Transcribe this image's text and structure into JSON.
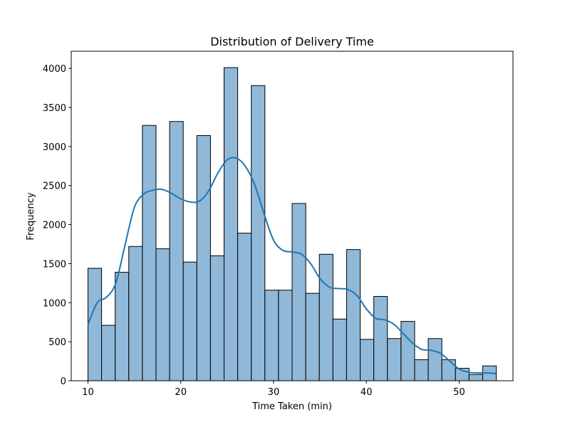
{
  "chart_data": {
    "type": "bar",
    "title": "Distribution of Delivery Time",
    "xlabel": "Time Taken (min)",
    "ylabel": "Frequency",
    "xlim": [
      8.2,
      55.8
    ],
    "ylim": [
      0,
      4220
    ],
    "xticks": [
      10,
      20,
      30,
      40,
      50
    ],
    "yticks": [
      0,
      500,
      1000,
      1500,
      2000,
      2500,
      3000,
      3500,
      4000
    ],
    "bin_start": 10,
    "bin_width": 1.4667,
    "values": [
      1440,
      710,
      1390,
      1720,
      3270,
      1690,
      3320,
      1520,
      3140,
      1600,
      4010,
      1890,
      3780,
      1160,
      1160,
      2270,
      1120,
      1620,
      790,
      1680,
      530,
      1080,
      540,
      760,
      270,
      540,
      270,
      160,
      80,
      190
    ],
    "kde": {
      "x": [
        10,
        11,
        12,
        13,
        14,
        15,
        16,
        17,
        18,
        19,
        20,
        21,
        22,
        23,
        24,
        25,
        26,
        27,
        28,
        29,
        30,
        31,
        32,
        33,
        34,
        35,
        36,
        37,
        38,
        39,
        40,
        41,
        42,
        43,
        44,
        45,
        46,
        47,
        48,
        49,
        50,
        51,
        52,
        53,
        54
      ],
      "y": [
        720,
        1000,
        1070,
        1250,
        1740,
        2220,
        2390,
        2440,
        2450,
        2400,
        2330,
        2290,
        2300,
        2430,
        2660,
        2830,
        2850,
        2740,
        2500,
        2130,
        1800,
        1670,
        1650,
        1620,
        1500,
        1310,
        1200,
        1180,
        1170,
        1090,
        920,
        800,
        780,
        720,
        600,
        480,
        400,
        390,
        350,
        250,
        150,
        110,
        100,
        100,
        90
      ]
    },
    "colors": {
      "bar_fill": "#90b8d8",
      "bar_edge": "#000000",
      "kde_line": "#1f77b4"
    },
    "grid": false,
    "legend": false
  }
}
